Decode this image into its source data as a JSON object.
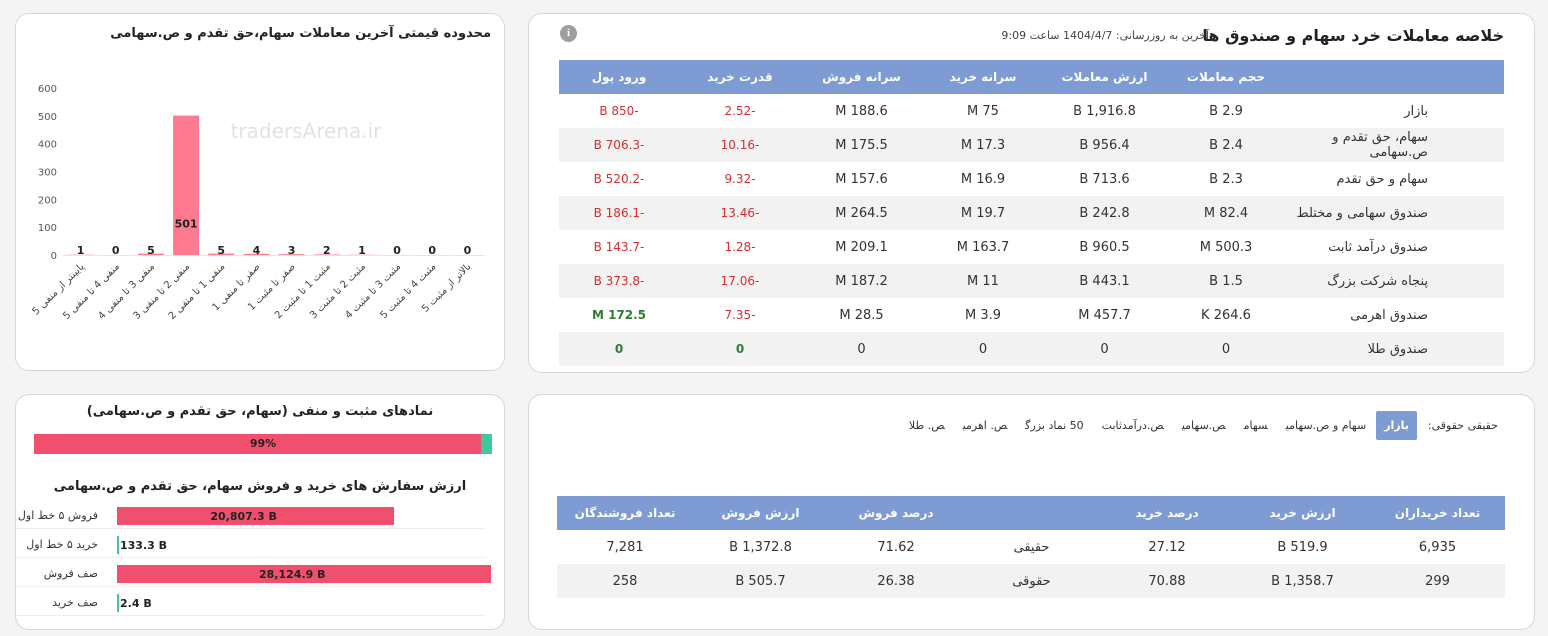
{
  "summary": {
    "title": "خلاصه معاملات خرد سهام و صندوق ها",
    "updated_label": "آخرین به روزرسانی:",
    "updated_value": "1404/4/7 ساعت 9:09",
    "info_icon": "info-icon",
    "headers": [
      "",
      "حجم معاملات",
      "ارزش معاملات",
      "سرانه خرید",
      "سرانه فروش",
      "قدرت خرید",
      "ورود پول"
    ],
    "rows": [
      {
        "name": "بازار",
        "volume": "2.9 B",
        "value": "1,916.8 B",
        "buy_pc": "75 M",
        "sell_pc": "188.6 M",
        "power": "-2.52",
        "inflow": "-850 B"
      },
      {
        "name": "سهام، حق تقدم و ص.سهامی",
        "volume": "2.4 B",
        "value": "956.4 B",
        "buy_pc": "17.3 M",
        "sell_pc": "175.5 M",
        "power": "-10.16",
        "inflow": "-706.3 B"
      },
      {
        "name": "سهام و حق تقدم",
        "volume": "2.3 B",
        "value": "713.6 B",
        "buy_pc": "16.9 M",
        "sell_pc": "157.6 M",
        "power": "-9.32",
        "inflow": "-520.2 B"
      },
      {
        "name": "صندوق سهامی و مختلط",
        "volume": "82.4 M",
        "value": "242.8 B",
        "buy_pc": "19.7 M",
        "sell_pc": "264.5 M",
        "power": "-13.46",
        "inflow": "-186.1 B"
      },
      {
        "name": "صندوق درآمد ثابت",
        "volume": "500.3 M",
        "value": "960.5 B",
        "buy_pc": "163.7 M",
        "sell_pc": "209.1 M",
        "power": "-1.28",
        "inflow": "-143.7 B"
      },
      {
        "name": "پنجاه شرکت بزرگ",
        "volume": "1.5 B",
        "value": "443.1 B",
        "buy_pc": "11 M",
        "sell_pc": "187.2 M",
        "power": "-17.06",
        "inflow": "-373.8 B"
      },
      {
        "name": "صندوق اهرمی",
        "volume": "264.6 K",
        "value": "457.7 M",
        "buy_pc": "3.9 M",
        "sell_pc": "28.5 M",
        "power": "-7.35",
        "inflow": "172.5 M"
      },
      {
        "name": "صندوق طلا",
        "volume": "0",
        "value": "0",
        "buy_pc": "0",
        "sell_pc": "0",
        "power": "0",
        "inflow": "0"
      }
    ],
    "colors": {
      "header": "#7f9bd3",
      "negative": "#d32f2f",
      "positive": "#2e7d32"
    }
  },
  "range_chart": {
    "title": "محدوده قیمتی آخرین معاملات سهام،حق تقدم و ص.سهامی",
    "watermark": "tradersArena.ir",
    "bar_color": "#ff7a90"
  },
  "chart_data": {
    "type": "bar",
    "title": "محدوده قیمتی آخرین معاملات سهام،حق تقدم و ص.سهامی",
    "categories": [
      "پایینتر از منفی 5",
      "منفی 4 تا منفی 5",
      "منفی 3 تا منفی 4",
      "منفی 2 تا منفی 3",
      "منفی 1 تا منفی 2",
      "صفر تا منفی 1",
      "صفر تا مثبت 1",
      "مثبت 1 تا مثبت 2",
      "مثبت 2 تا مثبت 3",
      "مثبت 3 تا مثبت 4",
      "مثبت 4 تا مثبت 5",
      "بالاتر از مثبت 5"
    ],
    "values": [
      1,
      0,
      5,
      501,
      5,
      4,
      3,
      2,
      1,
      0,
      0,
      0
    ],
    "yticks": [
      "0",
      "100",
      "200",
      "300",
      "400",
      "500",
      "600"
    ],
    "ylim": [
      0,
      600
    ],
    "grid": false,
    "xlabel": "",
    "ylabel": ""
  },
  "investors": {
    "filter_label": "حقیقی حقوقی:",
    "filters": [
      "بازار",
      "سهام و ص.سهامی",
      "سهام",
      "ص.سهامی",
      "ص.درآمدثابت",
      "50 نماد بزرگ",
      "ص. اهرمی",
      "ص. طلا"
    ],
    "active_filter": 0,
    "headers": [
      "تعداد خریداران",
      "ارزش خرید",
      "درصد خرید",
      "",
      "درصد فروش",
      "ارزش فروش",
      "تعداد فروشندگان"
    ],
    "rows": [
      {
        "buyers": "6,935",
        "buy_value": "519.9 B",
        "buy_pct": "27.12",
        "type": "حقیقی",
        "sell_pct": "71.62",
        "sell_value": "1,372.8 B",
        "sellers": "7,281"
      },
      {
        "buyers": "299",
        "buy_value": "1,358.7 B",
        "buy_pct": "70.88",
        "type": "حقوقی",
        "sell_pct": "26.38",
        "sell_value": "505.7 B",
        "sellers": "258"
      }
    ]
  },
  "posneg": {
    "title": "نمادهای مثبت و منفی (سهام، حق تقدم و ص.سهامی)",
    "negative_pct": 99,
    "progress_label": "99%",
    "colors": {
      "negative": "#f0506e",
      "positive": "#3cc8a0"
    },
    "orders_title": "ارزش سفارش های خرید و فروش سهام، حق تقدم و ص.سهامی",
    "orders": [
      {
        "label": "فروش ۵ خط اول",
        "value": 20807.3,
        "display": "20,807.3 B",
        "color": "#f0506e"
      },
      {
        "label": "خرید ۵ خط اول",
        "value": 133.3,
        "display": "133.3 B",
        "color": "#3cc8a0"
      },
      {
        "label": "صف فروش",
        "value": 28124.9,
        "display": "28,124.9 B",
        "color": "#f0506e"
      },
      {
        "label": "صف خرید",
        "value": 2.4,
        "display": "2.4 B",
        "color": "#3cc8a0"
      }
    ]
  }
}
